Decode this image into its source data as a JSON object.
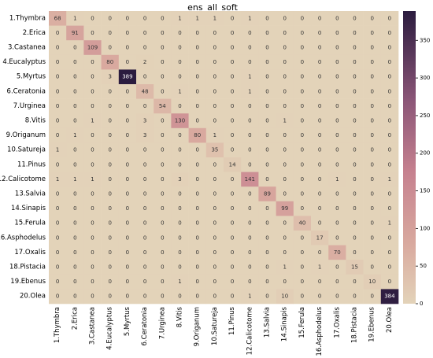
{
  "chart_data": {
    "type": "heatmap",
    "title": "ens_all_soft",
    "xlabel": "",
    "ylabel": "",
    "colormap": "light beige to dark purple",
    "color_low": "#e3d3b9",
    "color_mid": "#c6818f",
    "color_high": "#2b1c3f",
    "vmin": 0,
    "vmax": 389,
    "colorbar_ticks": [
      0,
      50,
      100,
      150,
      200,
      250,
      300,
      350
    ],
    "row_labels": [
      "1.Thymbra",
      "2.Erica",
      "3.Castanea",
      "4.Eucalyptus",
      "5.Myrtus",
      "6.Ceratonia",
      "7.Urginea",
      "8.Vitis",
      "9.Origanum",
      "10.Satureja",
      "11.Pinus",
      "12.Calicotome",
      "13.Salvia",
      "14.Sinapis",
      "15.Ferula",
      "16.Asphodelus",
      "17.Oxalis",
      "18.Pistacia",
      "19.Ebenus",
      "20.Olea"
    ],
    "col_labels": [
      "1.Thymbra",
      "2.Erica",
      "3.Castanea",
      "4.Eucalyptus",
      "5.Myrtus",
      "6.Ceratonia",
      "7.Urginea",
      "8.Vitis",
      "9.Origanum",
      "10.Satureja",
      "11.Pinus",
      "12.Calicotome",
      "13.Salvia",
      "14.Sinapis",
      "15.Ferula",
      "16.Asphodelus",
      "17.Oxalis",
      "18.Pistacia",
      "19.Ebenus",
      "20.Olea"
    ],
    "matrix": [
      [
        68,
        1,
        0,
        0,
        0,
        0,
        0,
        1,
        1,
        1,
        0,
        1,
        0,
        0,
        0,
        0,
        0,
        0,
        0,
        0
      ],
      [
        0,
        91,
        0,
        0,
        0,
        0,
        0,
        0,
        0,
        0,
        0,
        0,
        0,
        0,
        0,
        0,
        0,
        0,
        0,
        0
      ],
      [
        0,
        0,
        109,
        0,
        0,
        0,
        0,
        0,
        0,
        0,
        0,
        0,
        0,
        0,
        0,
        0,
        0,
        0,
        0,
        0
      ],
      [
        0,
        0,
        0,
        80,
        0,
        2,
        0,
        0,
        0,
        0,
        0,
        0,
        0,
        0,
        0,
        0,
        0,
        0,
        0,
        0
      ],
      [
        0,
        0,
        0,
        3,
        389,
        0,
        0,
        0,
        0,
        0,
        0,
        1,
        0,
        0,
        0,
        0,
        0,
        0,
        0,
        0
      ],
      [
        0,
        0,
        0,
        0,
        0,
        48,
        0,
        1,
        0,
        0,
        0,
        1,
        0,
        0,
        0,
        0,
        0,
        0,
        0,
        0
      ],
      [
        0,
        0,
        0,
        0,
        0,
        0,
        54,
        0,
        0,
        0,
        0,
        0,
        0,
        0,
        0,
        0,
        0,
        0,
        0,
        0
      ],
      [
        0,
        0,
        1,
        0,
        0,
        3,
        0,
        130,
        0,
        0,
        0,
        0,
        0,
        1,
        0,
        0,
        0,
        0,
        0,
        0
      ],
      [
        0,
        1,
        0,
        0,
        0,
        3,
        0,
        0,
        80,
        1,
        0,
        0,
        0,
        0,
        0,
        0,
        0,
        0,
        0,
        0
      ],
      [
        1,
        0,
        0,
        0,
        0,
        0,
        0,
        0,
        0,
        35,
        0,
        0,
        0,
        0,
        0,
        0,
        0,
        0,
        0,
        0
      ],
      [
        0,
        0,
        0,
        0,
        0,
        0,
        0,
        0,
        0,
        0,
        14,
        0,
        0,
        0,
        0,
        0,
        0,
        0,
        0,
        0
      ],
      [
        1,
        1,
        1,
        0,
        0,
        0,
        0,
        3,
        0,
        0,
        0,
        141,
        0,
        0,
        0,
        0,
        1,
        0,
        0,
        1
      ],
      [
        0,
        0,
        0,
        0,
        0,
        0,
        0,
        0,
        0,
        0,
        0,
        0,
        89,
        0,
        0,
        0,
        0,
        0,
        0,
        0
      ],
      [
        0,
        0,
        0,
        0,
        0,
        0,
        0,
        0,
        0,
        0,
        0,
        0,
        0,
        99,
        0,
        0,
        0,
        0,
        0,
        0
      ],
      [
        0,
        0,
        0,
        0,
        0,
        0,
        0,
        0,
        0,
        0,
        0,
        0,
        0,
        0,
        40,
        0,
        0,
        0,
        0,
        1
      ],
      [
        0,
        0,
        0,
        0,
        0,
        0,
        0,
        0,
        0,
        0,
        0,
        0,
        0,
        0,
        0,
        17,
        0,
        0,
        0,
        0
      ],
      [
        0,
        0,
        0,
        0,
        0,
        0,
        0,
        0,
        0,
        0,
        0,
        0,
        0,
        0,
        0,
        0,
        70,
        0,
        0,
        0
      ],
      [
        0,
        0,
        0,
        0,
        0,
        0,
        0,
        0,
        0,
        0,
        0,
        0,
        0,
        1,
        0,
        1,
        0,
        15,
        0,
        0
      ],
      [
        0,
        0,
        0,
        0,
        0,
        0,
        0,
        1,
        0,
        0,
        0,
        0,
        0,
        0,
        0,
        0,
        0,
        0,
        10,
        0
      ],
      [
        0,
        0,
        0,
        0,
        0,
        0,
        0,
        0,
        0,
        0,
        0,
        1,
        0,
        10,
        0,
        0,
        0,
        0,
        0,
        384
      ]
    ]
  }
}
